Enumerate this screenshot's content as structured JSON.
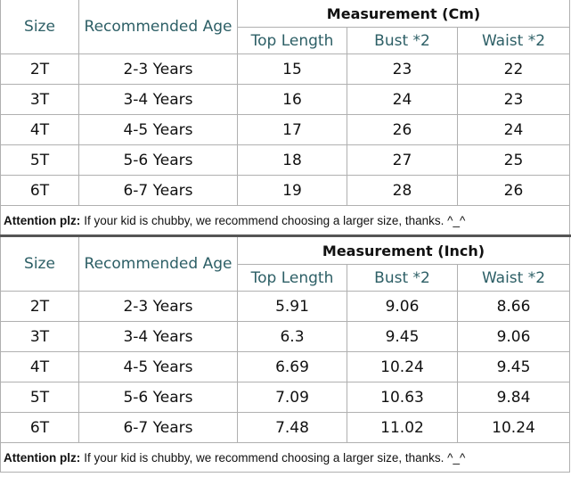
{
  "tables": [
    {
      "size_header": "Size",
      "age_header": "Recommended Age",
      "measurement_header": "Measurement (Cm)",
      "columns": [
        "Top Length",
        "Bust *2",
        "Waist *2"
      ],
      "rows": [
        [
          "2T",
          "2-3 Years",
          15,
          23,
          22
        ],
        [
          "3T",
          "3-4 Years",
          16,
          24,
          23
        ],
        [
          "4T",
          "4-5 Years",
          17,
          26,
          24
        ],
        [
          "5T",
          "5-6 Years",
          18,
          27,
          25
        ],
        [
          "6T",
          "6-7 Years",
          19,
          28,
          26
        ]
      ],
      "note": {
        "label": "Attention plz:",
        "text": "If your kid is chubby, we recommend choosing a larger size, thanks. ^_^"
      }
    },
    {
      "size_header": "Size",
      "age_header": "Recommended Age",
      "measurement_header": "Measurement (Inch)",
      "columns": [
        "Top Length",
        "Bust *2",
        "Waist *2"
      ],
      "rows": [
        [
          "2T",
          "2-3 Years",
          5.91,
          9.06,
          8.66
        ],
        [
          "3T",
          "3-4 Years",
          6.3,
          9.45,
          9.06
        ],
        [
          "4T",
          "4-5 Years",
          6.69,
          10.24,
          9.45
        ],
        [
          "5T",
          "5-6 Years",
          7.09,
          10.63,
          9.84
        ],
        [
          "6T",
          "6-7 Years",
          7.48,
          11.02,
          10.24
        ]
      ],
      "note": {
        "label": "Attention plz:",
        "text": "If your kid is chubby, we recommend choosing a larger size, thanks. ^_^"
      }
    }
  ]
}
